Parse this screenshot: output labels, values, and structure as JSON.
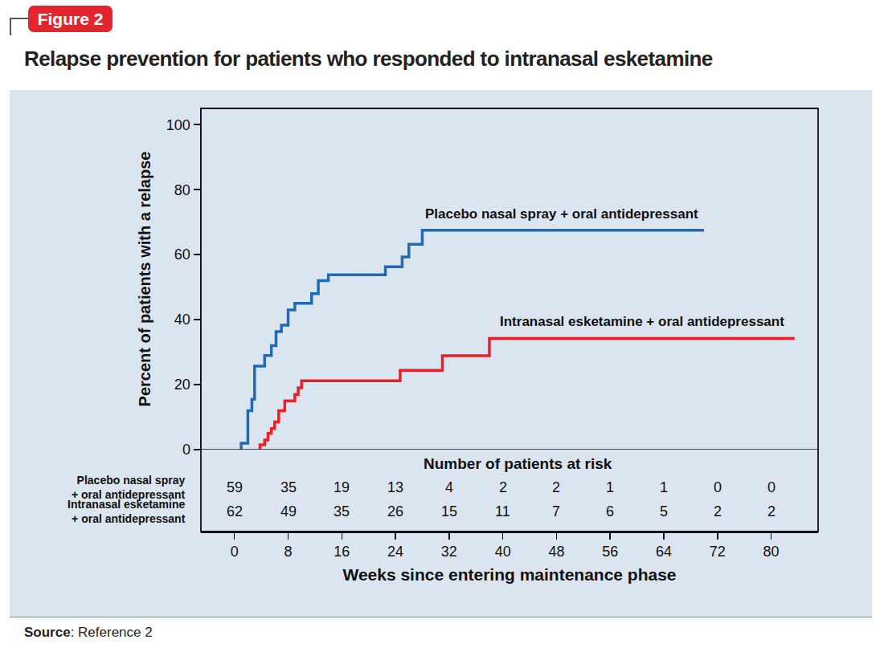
{
  "figure_label": "Figure 2",
  "source": "Source: Reference 2",
  "chart_data": {
    "type": "step",
    "title": "Relapse prevention for patients who responded to intranasal esketamine",
    "x_label": "Weeks since entering maintenance phase",
    "y_label": "Percent of patients with a relapse",
    "xlim": [
      -5,
      87
    ],
    "xticks": [
      0,
      8,
      16,
      24,
      32,
      40,
      48,
      56,
      64,
      72,
      80
    ],
    "ylim": [
      0,
      105
    ],
    "yticks": [
      0,
      20,
      40,
      60,
      80,
      100
    ],
    "grid": false,
    "at_risk": {
      "title": "Number of patients at risk",
      "x": [
        0,
        8,
        16,
        24,
        32,
        40,
        48,
        56,
        64,
        72,
        80
      ]
    },
    "series": [
      {
        "name": "Placebo nasal spray + oral antidepressant",
        "color": "#1f6cb4",
        "x": [
          1,
          1,
          2,
          2.6,
          3,
          4.5,
          5.5,
          6.2,
          7,
          8,
          9,
          11.5,
          12.5,
          14,
          22.5,
          25,
          26,
          28,
          70
        ],
        "values": [
          0,
          2,
          12,
          15.5,
          25.7,
          29,
          32,
          36.3,
          38.3,
          43,
          45,
          48,
          52,
          53.8,
          56.3,
          59.3,
          63.2,
          67.5,
          67.5
        ],
        "at_risk": [
          59,
          35,
          19,
          13,
          4,
          2,
          2,
          1,
          1,
          0,
          0
        ]
      },
      {
        "name": "Intranasal esketamine + oral antidepressant",
        "color": "#e8202a",
        "x": [
          3.8,
          3.8,
          4.5,
          5,
          5.5,
          6,
          6.6,
          7.5,
          9,
          9.5,
          10,
          24.7,
          31,
          38,
          83.5
        ],
        "values": [
          0,
          1.5,
          3,
          5,
          6.5,
          8.5,
          12,
          15,
          17,
          19,
          21.2,
          24.4,
          28.9,
          34.2,
          34.2
        ],
        "at_risk": [
          62,
          49,
          35,
          26,
          15,
          11,
          7,
          6,
          5,
          2,
          2
        ]
      }
    ]
  }
}
